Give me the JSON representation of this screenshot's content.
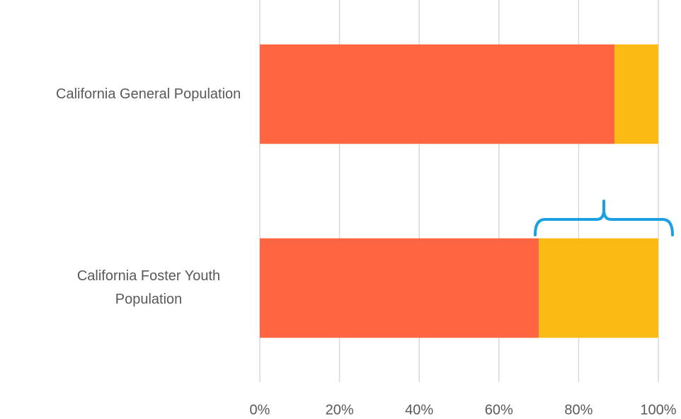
{
  "chart_data": {
    "type": "stacked_barh",
    "categories": [
      "California General Population",
      "California Foster Youth Population"
    ],
    "series": [
      {
        "color": "#ff6540",
        "values": [
          89,
          70
        ]
      },
      {
        "color": "#fbba14",
        "values": [
          11,
          30
        ]
      }
    ],
    "xlim": [
      0,
      100
    ],
    "xticks": [
      {
        "value": 0,
        "label": "0%"
      },
      {
        "value": 20,
        "label": "20%"
      },
      {
        "value": 40,
        "label": "40%"
      },
      {
        "value": 60,
        "label": "60%"
      },
      {
        "value": 80,
        "label": "80%"
      },
      {
        "value": 100,
        "label": "100%"
      }
    ],
    "grid": true
  }
}
